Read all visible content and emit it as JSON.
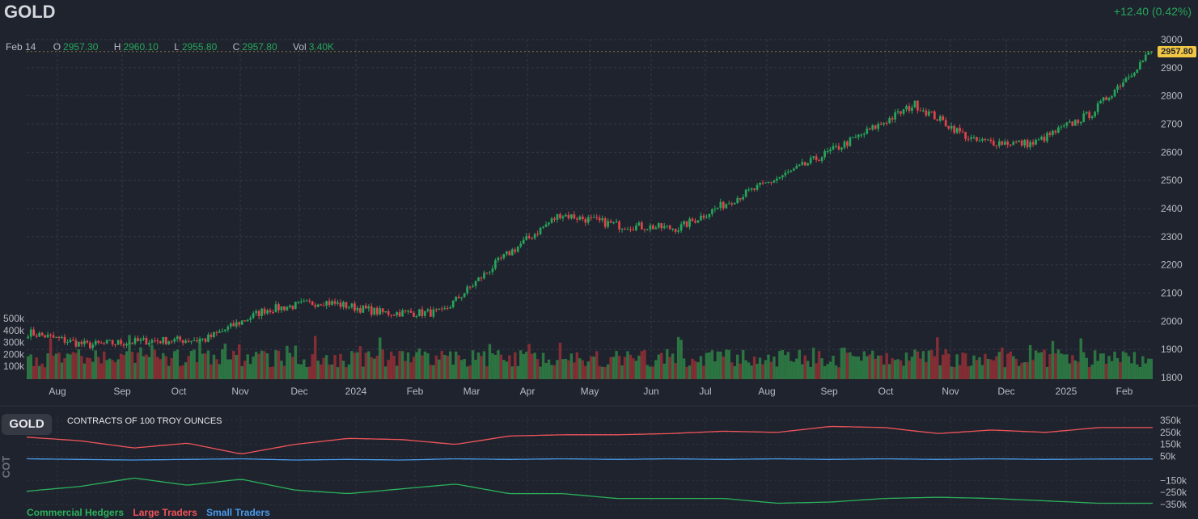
{
  "header": {
    "symbol": "GOLD",
    "change_text": "+12.40 (0.42%)"
  },
  "ohlc": {
    "date_label": "Feb 14",
    "open_key": "O",
    "open": "2957.30",
    "high_key": "H",
    "high": "2960.10",
    "low_key": "L",
    "low": "2955.80",
    "close_key": "C",
    "close": "2957.80",
    "vol_key": "Vol",
    "vol": "3.40K"
  },
  "last_price_label": "2957.80",
  "colors": {
    "background": "#1f232d",
    "up": "#26a65b",
    "down": "#e2434b",
    "commercial": "#2bb25c",
    "large": "#f0545a",
    "small": "#4a9bec",
    "last_price_tag": "#f2c744"
  },
  "chart_data": [
    {
      "type": "candlestick",
      "title": "GOLD",
      "x_tick_labels": [
        "Aug",
        "Sep",
        "Oct",
        "Nov",
        "Dec",
        "2024",
        "Feb",
        "Mar",
        "Apr",
        "May",
        "Jun",
        "Jul",
        "Aug",
        "Sep",
        "Oct",
        "Nov",
        "Dec",
        "2025",
        "Feb"
      ],
      "y_tick_labels": [
        "3000",
        "2900",
        "2800",
        "2700",
        "2600",
        "2500",
        "2400",
        "2300",
        "2200",
        "2100",
        "2000",
        "1900",
        "1800"
      ],
      "ylim": [
        1800,
        3000
      ],
      "close_path_months": [
        "Jul 2023",
        "Aug 2023",
        "Sep 2023",
        "Oct 2023",
        "Nov 2023",
        "Dec 2023",
        "Jan 2024",
        "Feb 2024",
        "Mar 2024",
        "Apr 2024",
        "May 2024",
        "Jun 2024",
        "Jul 2024",
        "Aug 2024",
        "Sep 2024",
        "Oct 2024",
        "Nov 2024",
        "Dec 2024",
        "Jan 2025",
        "Feb 2025"
      ],
      "close_path_values": [
        1960,
        1915,
        1930,
        1935,
        2040,
        2070,
        2030,
        2030,
        2220,
        2380,
        2340,
        2330,
        2440,
        2540,
        2650,
        2770,
        2640,
        2630,
        2740,
        2957.8
      ],
      "last_close": 2957.8,
      "volume_tick_labels": [
        "500k",
        "400k",
        "300k",
        "200k",
        "100k"
      ],
      "volume_ylim": [
        0,
        500000
      ],
      "grid": true
    },
    {
      "type": "line",
      "title": "CONTRACTS OF 100 TROY OUNCES",
      "ylabel": "COT",
      "y_tick_labels": [
        "350k",
        "250k",
        "150k",
        "50k",
        "−150k",
        "−250k",
        "−350k"
      ],
      "ylim": [
        -350000,
        350000
      ],
      "series": [
        {
          "name": "Commercial Hedgers",
          "values": [
            -240000,
            -200000,
            -130000,
            -190000,
            -140000,
            -230000,
            -260000,
            -220000,
            -180000,
            -260000,
            -260000,
            -300000,
            -300000,
            -300000,
            -340000,
            -330000,
            -300000,
            -290000,
            -300000,
            -320000,
            -340000,
            -340000
          ]
        },
        {
          "name": "Large Traders",
          "values": [
            210000,
            180000,
            120000,
            160000,
            70000,
            150000,
            200000,
            190000,
            150000,
            220000,
            230000,
            230000,
            240000,
            260000,
            250000,
            300000,
            290000,
            240000,
            270000,
            250000,
            290000,
            290000
          ]
        },
        {
          "name": "Small Traders",
          "values": [
            30000,
            25000,
            20000,
            25000,
            30000,
            20000,
            25000,
            20000,
            30000,
            25000,
            30000,
            25000,
            30000,
            25000,
            30000,
            25000,
            30000,
            25000,
            30000,
            25000,
            28000,
            28000
          ]
        }
      ]
    }
  ],
  "cot_panel": {
    "badge": "GOLD",
    "subtitle": "CONTRACTS OF 100 TROY OUNCES",
    "side_label": "COT",
    "legend": [
      "Commercial Hedgers",
      "Large Traders",
      "Small Traders"
    ]
  }
}
